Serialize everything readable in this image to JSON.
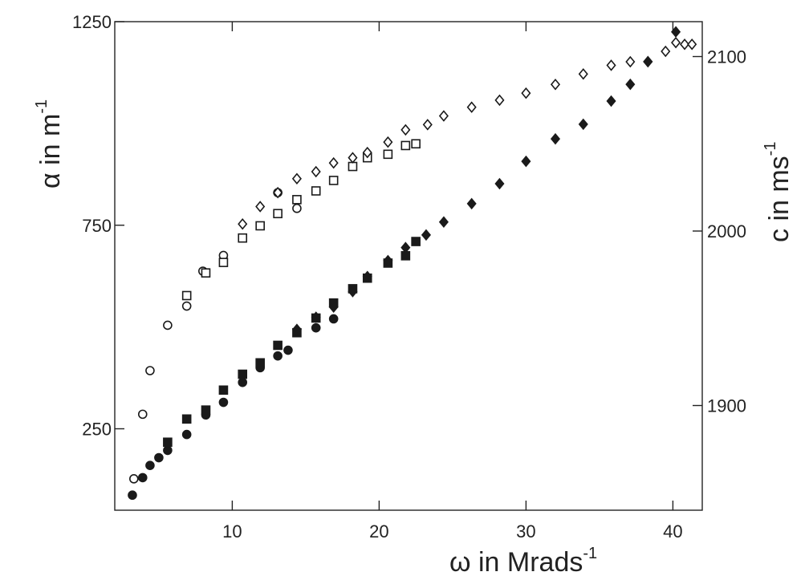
{
  "chart_data": {
    "type": "scatter",
    "title": "",
    "xlabel": "ω in Mrads",
    "xlabel_superscript": "-1",
    "ylabel_left": "α in m",
    "ylabel_left_superscript": "-1",
    "ylabel_right": "c in ms",
    "ylabel_right_superscript": "-1",
    "xlim": [
      2.0,
      42.0
    ],
    "ylim_left": [
      50,
      1250
    ],
    "ylim_right": [
      1840,
      2120
    ],
    "x_ticks": [
      10,
      20,
      30,
      40
    ],
    "y_ticks_left": [
      250,
      750,
      1250
    ],
    "y_ticks_right": [
      1900,
      2000,
      2100
    ],
    "grid": false,
    "legend": "none",
    "colors": {
      "marker": "#1a1a1a",
      "axis": "#222222",
      "background": "#ffffff"
    },
    "series": [
      {
        "name": "open circles",
        "marker": "circle",
        "filled": false,
        "axis": "right",
        "points": [
          [
            3.3,
            1858
          ],
          [
            3.9,
            1895
          ],
          [
            4.4,
            1920
          ],
          [
            5.6,
            1946
          ],
          [
            6.9,
            1957
          ],
          [
            8.0,
            1977
          ],
          [
            9.4,
            1986
          ],
          [
            13.1,
            2022
          ],
          [
            14.4,
            2013
          ]
        ]
      },
      {
        "name": "open squares",
        "marker": "square",
        "filled": false,
        "axis": "right",
        "points": [
          [
            6.9,
            1963
          ],
          [
            8.2,
            1976
          ],
          [
            9.4,
            1982
          ],
          [
            10.7,
            1996
          ],
          [
            11.9,
            2003
          ],
          [
            13.1,
            2010
          ],
          [
            14.4,
            2018
          ],
          [
            15.7,
            2023
          ],
          [
            16.9,
            2029
          ],
          [
            18.2,
            2037
          ],
          [
            19.2,
            2042
          ],
          [
            20.6,
            2044
          ],
          [
            21.8,
            2049
          ],
          [
            22.5,
            2050
          ]
        ]
      },
      {
        "name": "open diamonds",
        "marker": "diamond",
        "filled": false,
        "axis": "right",
        "points": [
          [
            10.7,
            2004
          ],
          [
            11.9,
            2014
          ],
          [
            13.1,
            2022
          ],
          [
            14.4,
            2030
          ],
          [
            15.7,
            2034
          ],
          [
            16.9,
            2039
          ],
          [
            18.2,
            2042
          ],
          [
            19.2,
            2045
          ],
          [
            20.6,
            2051
          ],
          [
            21.8,
            2058
          ],
          [
            23.3,
            2061
          ],
          [
            24.4,
            2066
          ],
          [
            26.3,
            2071
          ],
          [
            28.2,
            2075
          ],
          [
            30.0,
            2079
          ],
          [
            32.0,
            2084
          ],
          [
            33.9,
            2090
          ],
          [
            35.8,
            2095
          ],
          [
            37.1,
            2097
          ],
          [
            38.3,
            2097
          ],
          [
            39.5,
            2103
          ],
          [
            40.2,
            2108
          ],
          [
            40.8,
            2107
          ],
          [
            41.3,
            2107
          ]
        ]
      },
      {
        "name": "filled circles",
        "marker": "circle",
        "filled": true,
        "axis": "left",
        "points": [
          [
            3.2,
            87
          ],
          [
            3.9,
            130
          ],
          [
            4.4,
            160
          ],
          [
            5.0,
            179
          ],
          [
            5.6,
            197
          ],
          [
            6.9,
            236
          ],
          [
            8.2,
            284
          ],
          [
            9.4,
            315
          ],
          [
            10.7,
            364
          ],
          [
            11.9,
            400
          ],
          [
            13.1,
            429
          ],
          [
            13.8,
            443
          ],
          [
            15.7,
            498
          ],
          [
            16.9,
            520
          ]
        ]
      },
      {
        "name": "filled squares",
        "marker": "square",
        "filled": true,
        "axis": "left",
        "points": [
          [
            5.6,
            217
          ],
          [
            6.9,
            274
          ],
          [
            8.2,
            296
          ],
          [
            9.4,
            345
          ],
          [
            10.7,
            384
          ],
          [
            11.9,
            412
          ],
          [
            13.1,
            455
          ],
          [
            14.4,
            486
          ],
          [
            15.7,
            522
          ],
          [
            16.9,
            559
          ],
          [
            18.2,
            594
          ],
          [
            19.2,
            620
          ],
          [
            20.6,
            657
          ],
          [
            21.8,
            675
          ],
          [
            22.5,
            710
          ]
        ]
      },
      {
        "name": "filled diamonds",
        "marker": "diamond",
        "filled": true,
        "axis": "left",
        "points": [
          [
            14.4,
            494
          ],
          [
            15.7,
            524
          ],
          [
            16.9,
            549
          ],
          [
            18.2,
            587
          ],
          [
            19.2,
            624
          ],
          [
            20.6,
            663
          ],
          [
            21.8,
            695
          ],
          [
            23.2,
            726
          ],
          [
            24.4,
            758
          ],
          [
            26.3,
            803
          ],
          [
            28.2,
            852
          ],
          [
            30.0,
            907
          ],
          [
            32.0,
            962
          ],
          [
            33.9,
            998
          ],
          [
            35.8,
            1055
          ],
          [
            37.1,
            1096
          ],
          [
            38.3,
            1152
          ],
          [
            40.2,
            1225
          ]
        ]
      }
    ]
  }
}
